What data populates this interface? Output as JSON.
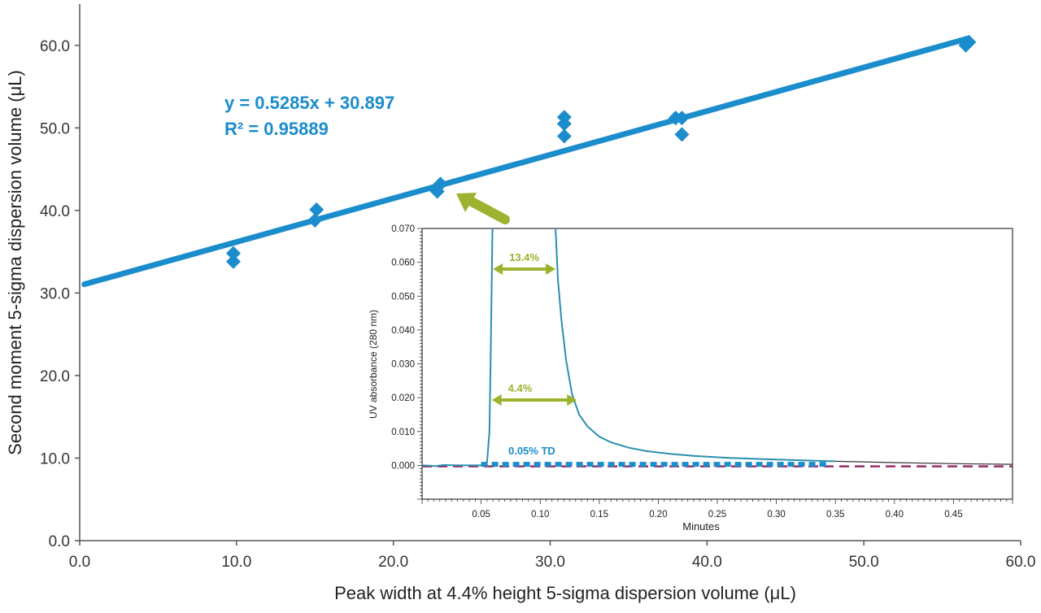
{
  "chart_data": [
    {
      "type": "scatter",
      "title": "",
      "xlabel": "Peak width at 4.4% height 5-sigma dispersion volume (μL)",
      "ylabel": "Second moment 5-sigma dispersion volume (μL)",
      "xlim": [
        0,
        60
      ],
      "ylim": [
        0,
        65
      ],
      "x_ticks": [
        0,
        10,
        20,
        30,
        40,
        50,
        60
      ],
      "y_ticks": [
        0,
        10,
        20,
        30,
        40,
        50,
        60
      ],
      "tick_format": "0.0",
      "grid": false,
      "marker_color": "#1b8ccc",
      "points": [
        {
          "x": 9.8,
          "y": 33.8
        },
        {
          "x": 9.8,
          "y": 34.8
        },
        {
          "x": 15.0,
          "y": 38.8
        },
        {
          "x": 15.1,
          "y": 40.1
        },
        {
          "x": 22.8,
          "y": 42.3
        },
        {
          "x": 23.0,
          "y": 43.2
        },
        {
          "x": 30.9,
          "y": 49.0
        },
        {
          "x": 30.9,
          "y": 50.5
        },
        {
          "x": 30.9,
          "y": 51.3
        },
        {
          "x": 38.0,
          "y": 51.2
        },
        {
          "x": 38.4,
          "y": 51.2
        },
        {
          "x": 38.4,
          "y": 49.2
        },
        {
          "x": 56.5,
          "y": 60.0
        },
        {
          "x": 56.7,
          "y": 60.4
        }
      ],
      "trendline": {
        "slope": 0.5285,
        "intercept": 30.897,
        "x_range": [
          0.3,
          56.6
        ],
        "equation_label": "y = 0.5285x + 30.897",
        "r2_label": "R² = 0.95889"
      }
    },
    {
      "type": "line",
      "title": "",
      "xlabel": "Minutes",
      "ylabel": "UV absorbance (280 nm)",
      "xlim": [
        0,
        0.5
      ],
      "ylim": [
        -0.01,
        0.07
      ],
      "x_ticks": [
        0.05,
        0.1,
        0.15,
        0.2,
        0.25,
        0.3,
        0.35,
        0.4,
        0.45
      ],
      "y_ticks": [
        0,
        0.01,
        0.02,
        0.03,
        0.04,
        0.05,
        0.06,
        0.07
      ],
      "x_tick_labels": [
        "0.05",
        "0.10",
        "0.15",
        "0.20",
        "0.25",
        "0.30",
        "0.35",
        "0.40",
        "0.45"
      ],
      "y_tick_labels": [
        "0.000",
        "0.010",
        "0.020",
        "0.030",
        "0.040",
        "0.050",
        "0.060",
        "0.070"
      ],
      "grid": false,
      "trace_color": "#2b8fae",
      "baseline_color": "#9a2b6a",
      "marker_band_color": "#1b8ccc",
      "annotation_color": "#9bb32e",
      "trace": [
        [
          0.0,
          0.0
        ],
        [
          0.012,
          -0.0002
        ],
        [
          0.018,
          0.0001
        ],
        [
          0.03,
          0.0
        ],
        [
          0.05,
          0.0
        ],
        [
          0.053,
          0.0
        ],
        [
          0.055,
          0.001
        ],
        [
          0.057,
          0.01
        ],
        [
          0.058,
          0.03
        ],
        [
          0.059,
          0.055
        ],
        [
          0.06,
          0.08
        ],
        [
          0.11,
          0.08
        ],
        [
          0.113,
          0.07
        ],
        [
          0.115,
          0.055
        ],
        [
          0.118,
          0.043
        ],
        [
          0.122,
          0.031
        ],
        [
          0.127,
          0.021
        ],
        [
          0.133,
          0.015
        ],
        [
          0.14,
          0.0115
        ],
        [
          0.15,
          0.0085
        ],
        [
          0.16,
          0.0068
        ],
        [
          0.175,
          0.0052
        ],
        [
          0.19,
          0.0042
        ],
        [
          0.21,
          0.0034
        ],
        [
          0.23,
          0.0028
        ],
        [
          0.26,
          0.0022
        ],
        [
          0.3,
          0.0017
        ],
        [
          0.35,
          0.0012
        ],
        [
          0.4,
          0.0008
        ],
        [
          0.45,
          0.0005
        ],
        [
          0.5,
          0.0003
        ]
      ],
      "baseline_y": -0.0003,
      "td_band": {
        "x": [
          0.05,
          0.345
        ],
        "y": 0.0003,
        "label": "0.05% TD"
      },
      "width_markers": [
        {
          "label": "13.4%",
          "y": 0.058,
          "x": [
            0.06,
            0.113
          ]
        },
        {
          "label": "4.4%",
          "y": 0.0193,
          "x": [
            0.059,
            0.131
          ]
        }
      ]
    }
  ]
}
